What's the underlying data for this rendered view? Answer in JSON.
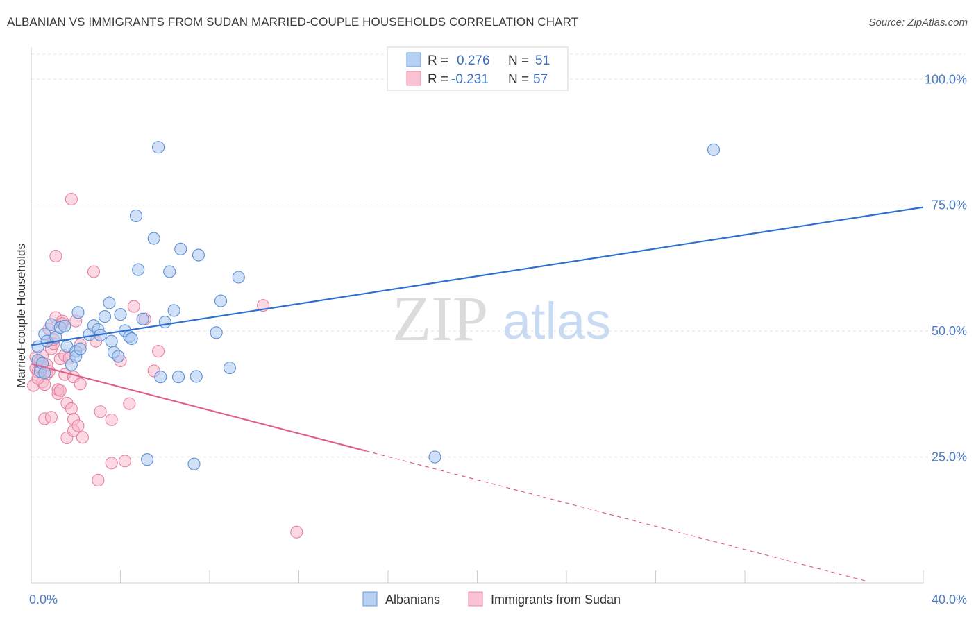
{
  "title": "ALBANIAN VS IMMIGRANTS FROM SUDAN MARRIED-COUPLE HOUSEHOLDS CORRELATION CHART",
  "source": "Source: ZipAtlas.com",
  "watermark": {
    "zip": "ZIP",
    "atlas": "atlas"
  },
  "colors": {
    "albanians_fill": "#a9c8f0",
    "albanians_stroke": "#5b8fd6",
    "albanians_line": "#2e6fd0",
    "sudan_fill": "#f7b8cb",
    "sudan_stroke": "#e77fa0",
    "sudan_line": "#e0608c",
    "tick_text": "#4a7cc4",
    "grid": "#e3e3e3"
  },
  "legend": {
    "r_label": "R =",
    "n_label": "N =",
    "rows": [
      {
        "r": "0.276",
        "n": "51"
      },
      {
        "r": "-0.231",
        "n": "57"
      }
    ]
  },
  "chart_data": {
    "type": "scatter",
    "title": "ALBANIAN VS IMMIGRANTS FROM SUDAN MARRIED-COUPLE HOUSEHOLDS CORRELATION CHART",
    "xlabel": "",
    "ylabel": "Married-couple Households",
    "xlim": [
      0,
      40
    ],
    "ylim": [
      0,
      105
    ],
    "x_tick_labels": [
      "0.0%",
      "40.0%"
    ],
    "y_ticks": [
      25,
      50,
      75,
      100
    ],
    "y_tick_labels": [
      "25.0%",
      "50.0%",
      "75.0%",
      "100.0%"
    ],
    "grid": true,
    "legend_position": "top-center",
    "series": [
      {
        "name": "Albanians",
        "r": 0.276,
        "n": 51,
        "trend": {
          "x": [
            0,
            40
          ],
          "y": [
            47.2,
            74.6
          ],
          "dashed_from": null
        },
        "points": [
          [
            0.3,
            46.9
          ],
          [
            0.3,
            44.2
          ],
          [
            0.4,
            42.0
          ],
          [
            0.5,
            43.6
          ],
          [
            0.6,
            41.7
          ],
          [
            0.6,
            49.4
          ],
          [
            0.7,
            48.0
          ],
          [
            0.9,
            51.3
          ],
          [
            1.1,
            48.8
          ],
          [
            1.3,
            50.7
          ],
          [
            1.5,
            51.0
          ],
          [
            1.6,
            47.0
          ],
          [
            1.8,
            43.3
          ],
          [
            2.0,
            46.0
          ],
          [
            2.0,
            45.0
          ],
          [
            2.1,
            53.7
          ],
          [
            2.2,
            46.5
          ],
          [
            2.6,
            49.3
          ],
          [
            2.8,
            51.1
          ],
          [
            3.0,
            50.3
          ],
          [
            3.1,
            49.2
          ],
          [
            3.3,
            52.9
          ],
          [
            3.5,
            55.6
          ],
          [
            3.6,
            48.0
          ],
          [
            3.7,
            45.8
          ],
          [
            3.9,
            45.0
          ],
          [
            4.0,
            53.3
          ],
          [
            4.2,
            50.1
          ],
          [
            4.4,
            48.9
          ],
          [
            4.5,
            48.5
          ],
          [
            4.7,
            72.9
          ],
          [
            4.8,
            62.2
          ],
          [
            5.0,
            52.4
          ],
          [
            5.2,
            24.5
          ],
          [
            5.5,
            68.4
          ],
          [
            5.7,
            86.5
          ],
          [
            5.8,
            40.9
          ],
          [
            6.0,
            51.8
          ],
          [
            6.2,
            61.8
          ],
          [
            6.4,
            54.1
          ],
          [
            6.6,
            40.9
          ],
          [
            6.7,
            66.3
          ],
          [
            7.4,
            41.0
          ],
          [
            7.5,
            65.1
          ],
          [
            7.3,
            23.6
          ],
          [
            8.3,
            49.7
          ],
          [
            8.5,
            56.0
          ],
          [
            8.9,
            42.7
          ],
          [
            9.3,
            60.7
          ],
          [
            18.1,
            25.0
          ],
          [
            30.6,
            86.0
          ]
        ]
      },
      {
        "name": "Immigrants from Sudan",
        "r": -0.231,
        "n": 57,
        "trend": {
          "x": [
            0,
            37.5
          ],
          "y": [
            43.5,
            0.3
          ],
          "dashed_from": 15.0
        },
        "points": [
          [
            0.1,
            39.2
          ],
          [
            0.2,
            44.8
          ],
          [
            0.2,
            42.6
          ],
          [
            0.3,
            41.9
          ],
          [
            0.4,
            44.0
          ],
          [
            0.4,
            43.0
          ],
          [
            0.5,
            39.9
          ],
          [
            0.5,
            45.1
          ],
          [
            0.6,
            32.6
          ],
          [
            0.6,
            39.4
          ],
          [
            0.7,
            41.5
          ],
          [
            0.7,
            43.3
          ],
          [
            0.8,
            50.4
          ],
          [
            0.8,
            42.0
          ],
          [
            0.9,
            32.9
          ],
          [
            0.9,
            46.5
          ],
          [
            1.0,
            47.5
          ],
          [
            1.0,
            48.3
          ],
          [
            1.1,
            52.7
          ],
          [
            1.1,
            64.9
          ],
          [
            1.2,
            37.6
          ],
          [
            1.2,
            38.4
          ],
          [
            1.3,
            38.2
          ],
          [
            1.3,
            44.5
          ],
          [
            1.4,
            52.0
          ],
          [
            1.4,
            51.5
          ],
          [
            1.5,
            45.2
          ],
          [
            1.5,
            41.4
          ],
          [
            1.6,
            35.7
          ],
          [
            1.6,
            28.8
          ],
          [
            1.7,
            44.6
          ],
          [
            1.8,
            76.2
          ],
          [
            1.8,
            34.6
          ],
          [
            1.9,
            30.2
          ],
          [
            1.9,
            40.9
          ],
          [
            1.9,
            32.5
          ],
          [
            2.0,
            52.0
          ],
          [
            2.1,
            31.2
          ],
          [
            2.2,
            39.5
          ],
          [
            2.2,
            47.3
          ],
          [
            2.3,
            28.9
          ],
          [
            2.8,
            61.8
          ],
          [
            2.9,
            48.0
          ],
          [
            3.0,
            20.4
          ],
          [
            3.1,
            34.0
          ],
          [
            3.6,
            32.4
          ],
          [
            3.6,
            23.8
          ],
          [
            4.2,
            24.2
          ],
          [
            4.4,
            35.6
          ],
          [
            4.6,
            54.9
          ],
          [
            5.1,
            52.4
          ],
          [
            5.5,
            42.1
          ],
          [
            5.7,
            46.0
          ],
          [
            4.0,
            44.1
          ],
          [
            10.4,
            55.1
          ],
          [
            11.9,
            10.1
          ],
          [
            0.3,
            40.6
          ]
        ]
      }
    ]
  },
  "bottom_legend": [
    {
      "label": "Albanians"
    },
    {
      "label": "Immigrants from Sudan"
    }
  ]
}
